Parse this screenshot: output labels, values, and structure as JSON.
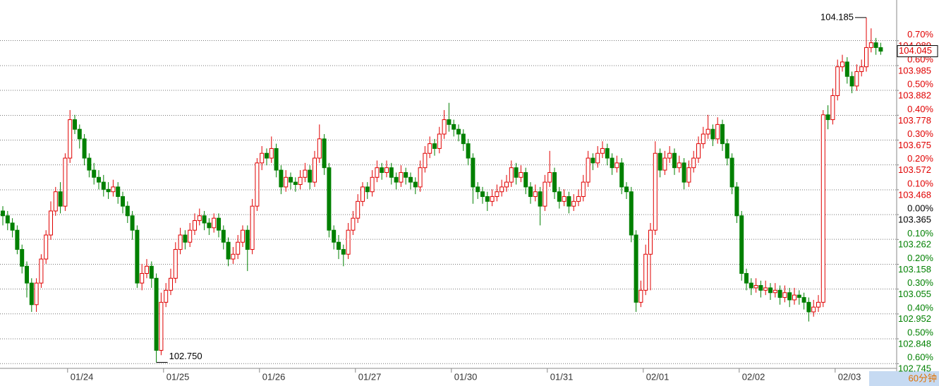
{
  "chart_data": {
    "type": "candlestick",
    "period": "60分钟",
    "up_color": "#e00000",
    "down_color": "#008000",
    "ylim": [
      102.725,
      104.258
    ],
    "yticks": [
      104.089,
      103.985,
      103.882,
      103.778,
      103.675,
      103.572,
      103.468,
      103.365,
      103.262,
      103.158,
      103.055,
      102.952,
      102.848,
      102.745
    ],
    "y2lim": [
      -0.619,
      0.864
    ],
    "y2ticks": [
      {
        "value": 0.7,
        "label": "0.70%"
      },
      {
        "value": 0.6,
        "label": "0.60%"
      },
      {
        "value": 0.5,
        "label": "0.50%"
      },
      {
        "value": 0.4,
        "label": "0.40%"
      },
      {
        "value": 0.3,
        "label": "0.30%"
      },
      {
        "value": 0.2,
        "label": "0.20%"
      },
      {
        "value": 0.1,
        "label": "0.10%"
      },
      {
        "value": 0,
        "label": "0.00%"
      },
      {
        "value": -0.1,
        "label": "0.10%"
      },
      {
        "value": -0.2,
        "label": "0.20%"
      },
      {
        "value": -0.3,
        "label": "0.30%"
      },
      {
        "value": -0.4,
        "label": "0.40%"
      },
      {
        "value": -0.5,
        "label": "0.50%"
      },
      {
        "value": -0.6,
        "label": "0.60%"
      }
    ],
    "annotations": [
      {
        "value": 104.185,
        "label": "104.185"
      },
      {
        "value": 102.75,
        "label": "102.750"
      }
    ],
    "categories": [
      null,
      null,
      null,
      null,
      null,
      null,
      null,
      null,
      null,
      null,
      null,
      null,
      null,
      null,
      "01/24",
      null,
      null,
      null,
      null,
      null,
      null,
      null,
      null,
      null,
      null,
      null,
      null,
      null,
      null,
      null,
      null,
      null,
      null,
      null,
      "01/25",
      null,
      null,
      null,
      null,
      null,
      null,
      null,
      null,
      null,
      null,
      null,
      null,
      null,
      null,
      null,
      null,
      null,
      null,
      null,
      "01/26",
      null,
      null,
      null,
      null,
      null,
      null,
      null,
      null,
      null,
      null,
      null,
      null,
      null,
      null,
      null,
      null,
      null,
      null,
      null,
      "01/27",
      null,
      null,
      null,
      null,
      null,
      null,
      null,
      null,
      null,
      null,
      null,
      null,
      null,
      null,
      null,
      null,
      null,
      null,
      null,
      "01/30",
      null,
      null,
      null,
      null,
      null,
      null,
      null,
      null,
      null,
      null,
      null,
      null,
      null,
      null,
      null,
      null,
      null,
      null,
      null,
      "01/31",
      null,
      null,
      null,
      null,
      null,
      null,
      null,
      null,
      null,
      null,
      null,
      null,
      null,
      null,
      null,
      null,
      null,
      null,
      null,
      "02/01",
      null,
      null,
      null,
      null,
      null,
      null,
      null,
      null,
      null,
      null,
      null,
      null,
      null,
      null,
      null,
      null,
      null,
      null,
      null,
      "02/02",
      null,
      null,
      null,
      null,
      null,
      null,
      null,
      null,
      null,
      null,
      null,
      null,
      null,
      null,
      null,
      null,
      null,
      null,
      null,
      "02/03",
      null,
      null,
      null,
      null,
      null,
      null,
      null,
      null,
      null
    ],
    "ohlc": [
      [
        103.38,
        103.4,
        103.32,
        103.36
      ],
      [
        103.36,
        103.38,
        103.3,
        103.33
      ],
      [
        103.33,
        103.35,
        103.27,
        103.3
      ],
      [
        103.3,
        103.32,
        103.2,
        103.22
      ],
      [
        103.22,
        103.24,
        103.12,
        103.15
      ],
      [
        103.15,
        103.17,
        103.02,
        103.08
      ],
      [
        103.08,
        103.1,
        102.96,
        102.99
      ],
      [
        102.99,
        103.1,
        102.96,
        103.08
      ],
      [
        103.08,
        103.2,
        103.06,
        103.18
      ],
      [
        103.18,
        103.3,
        103.16,
        103.28
      ],
      [
        103.28,
        103.42,
        103.26,
        103.38
      ],
      [
        103.38,
        103.48,
        103.36,
        103.46
      ],
      [
        103.46,
        103.5,
        103.37,
        103.4
      ],
      [
        103.4,
        103.62,
        103.38,
        103.6
      ],
      [
        103.6,
        103.8,
        103.58,
        103.76
      ],
      [
        103.76,
        103.78,
        103.7,
        103.72
      ],
      [
        103.72,
        103.74,
        103.64,
        103.68
      ],
      [
        103.68,
        103.7,
        103.57,
        103.6
      ],
      [
        103.6,
        103.62,
        103.52,
        103.55
      ],
      [
        103.55,
        103.58,
        103.49,
        103.52
      ],
      [
        103.52,
        103.55,
        103.47,
        103.5
      ],
      [
        103.5,
        103.53,
        103.44,
        103.47
      ],
      [
        103.47,
        103.5,
        103.43,
        103.46
      ],
      [
        103.46,
        103.51,
        103.44,
        103.48
      ],
      [
        103.48,
        103.5,
        103.41,
        103.44
      ],
      [
        103.44,
        103.46,
        103.37,
        103.4
      ],
      [
        103.4,
        103.42,
        103.33,
        103.36
      ],
      [
        103.36,
        103.38,
        103.26,
        103.3
      ],
      [
        103.3,
        103.32,
        103.06,
        103.08
      ],
      [
        103.08,
        103.16,
        103.05,
        103.12
      ],
      [
        103.12,
        103.18,
        103.1,
        103.15
      ],
      [
        103.15,
        103.17,
        103.06,
        103.1
      ],
      [
        103.1,
        103.12,
        102.75,
        102.8
      ],
      [
        102.8,
        103.04,
        102.78,
        103.0
      ],
      [
        103.0,
        103.08,
        102.98,
        103.05
      ],
      [
        103.05,
        103.14,
        103.03,
        103.1
      ],
      [
        103.1,
        103.25,
        103.08,
        103.22
      ],
      [
        103.22,
        103.31,
        103.2,
        103.28
      ],
      [
        103.28,
        103.3,
        103.22,
        103.25
      ],
      [
        103.25,
        103.33,
        103.23,
        103.3
      ],
      [
        103.3,
        103.37,
        103.28,
        103.34
      ],
      [
        103.34,
        103.39,
        103.32,
        103.36
      ],
      [
        103.36,
        103.38,
        103.3,
        103.33
      ],
      [
        103.33,
        103.35,
        103.28,
        103.31
      ],
      [
        103.31,
        103.37,
        103.29,
        103.35
      ],
      [
        103.35,
        103.37,
        103.27,
        103.3
      ],
      [
        103.3,
        103.32,
        103.22,
        103.25
      ],
      [
        103.25,
        103.27,
        103.15,
        103.18
      ],
      [
        103.18,
        103.23,
        103.16,
        103.2
      ],
      [
        103.2,
        103.28,
        103.18,
        103.25
      ],
      [
        103.25,
        103.32,
        103.23,
        103.3
      ],
      [
        103.3,
        103.32,
        103.13,
        103.22
      ],
      [
        103.22,
        103.43,
        103.2,
        103.4
      ],
      [
        103.4,
        103.6,
        103.38,
        103.58
      ],
      [
        103.58,
        103.65,
        103.55,
        103.62
      ],
      [
        103.62,
        103.64,
        103.57,
        103.6
      ],
      [
        103.6,
        103.69,
        103.58,
        103.64
      ],
      [
        103.64,
        103.66,
        103.52,
        103.55
      ],
      [
        103.55,
        103.57,
        103.45,
        103.48
      ],
      [
        103.48,
        103.55,
        103.46,
        103.52
      ],
      [
        103.52,
        103.54,
        103.47,
        103.5
      ],
      [
        103.5,
        103.52,
        103.46,
        103.49
      ],
      [
        103.49,
        103.55,
        103.47,
        103.52
      ],
      [
        103.52,
        103.58,
        103.5,
        103.55
      ],
      [
        103.55,
        103.57,
        103.47,
        103.5
      ],
      [
        103.5,
        103.63,
        103.48,
        103.6
      ],
      [
        103.6,
        103.74,
        103.58,
        103.68
      ],
      [
        103.68,
        103.7,
        103.53,
        103.56
      ],
      [
        103.56,
        103.58,
        103.27,
        103.3
      ],
      [
        103.3,
        103.32,
        103.22,
        103.25
      ],
      [
        103.25,
        103.28,
        103.18,
        103.22
      ],
      [
        103.22,
        103.24,
        103.15,
        103.2
      ],
      [
        103.2,
        103.33,
        103.18,
        103.3
      ],
      [
        103.3,
        103.38,
        103.28,
        103.35
      ],
      [
        103.35,
        103.45,
        103.33,
        103.42
      ],
      [
        103.42,
        103.5,
        103.4,
        103.48
      ],
      [
        103.48,
        103.5,
        103.43,
        103.46
      ],
      [
        103.46,
        103.55,
        103.44,
        103.52
      ],
      [
        103.52,
        103.59,
        103.5,
        103.56
      ],
      [
        103.56,
        103.58,
        103.51,
        103.54
      ],
      [
        103.54,
        103.59,
        103.52,
        103.56
      ],
      [
        103.56,
        103.58,
        103.49,
        103.52
      ],
      [
        103.52,
        103.54,
        103.47,
        103.5
      ],
      [
        103.5,
        103.57,
        103.48,
        103.54
      ],
      [
        103.54,
        103.56,
        103.49,
        103.52
      ],
      [
        103.52,
        103.54,
        103.47,
        103.5
      ],
      [
        103.5,
        103.52,
        103.45,
        103.48
      ],
      [
        103.48,
        103.59,
        103.46,
        103.56
      ],
      [
        103.56,
        103.65,
        103.54,
        103.62
      ],
      [
        103.62,
        103.69,
        103.6,
        103.66
      ],
      [
        103.66,
        103.68,
        103.61,
        103.64
      ],
      [
        103.64,
        103.73,
        103.62,
        103.7
      ],
      [
        103.7,
        103.8,
        103.68,
        103.76
      ],
      [
        103.76,
        103.83,
        103.71,
        103.74
      ],
      [
        103.74,
        103.76,
        103.69,
        103.72
      ],
      [
        103.72,
        103.74,
        103.67,
        103.7
      ],
      [
        103.7,
        103.72,
        103.63,
        103.66
      ],
      [
        103.66,
        103.68,
        103.57,
        103.6
      ],
      [
        103.6,
        103.62,
        103.41,
        103.48
      ],
      [
        103.48,
        103.5,
        103.43,
        103.46
      ],
      [
        103.46,
        103.48,
        103.41,
        103.44
      ],
      [
        103.44,
        103.46,
        103.38,
        103.42
      ],
      [
        103.42,
        103.47,
        103.4,
        103.44
      ],
      [
        103.44,
        103.49,
        103.42,
        103.46
      ],
      [
        103.46,
        103.51,
        103.44,
        103.48
      ],
      [
        103.48,
        103.53,
        103.46,
        103.5
      ],
      [
        103.5,
        103.59,
        103.48,
        103.56
      ],
      [
        103.56,
        103.58,
        103.49,
        103.52
      ],
      [
        103.52,
        103.57,
        103.5,
        103.54
      ],
      [
        103.54,
        103.56,
        103.45,
        103.48
      ],
      [
        103.48,
        103.5,
        103.41,
        103.44
      ],
      [
        103.44,
        103.49,
        103.42,
        103.46
      ],
      [
        103.46,
        103.48,
        103.32,
        103.4
      ],
      [
        103.4,
        103.53,
        103.38,
        103.5
      ],
      [
        103.5,
        103.63,
        103.48,
        103.54
      ],
      [
        103.54,
        103.56,
        103.43,
        103.46
      ],
      [
        103.46,
        103.48,
        103.39,
        103.42
      ],
      [
        103.42,
        103.47,
        103.4,
        103.44
      ],
      [
        103.44,
        103.46,
        103.37,
        103.4
      ],
      [
        103.4,
        103.45,
        103.38,
        103.42
      ],
      [
        103.42,
        103.47,
        103.4,
        103.44
      ],
      [
        103.44,
        103.53,
        103.42,
        103.5
      ],
      [
        103.5,
        103.63,
        103.48,
        103.6
      ],
      [
        103.6,
        103.62,
        103.55,
        103.58
      ],
      [
        103.58,
        103.65,
        103.56,
        103.62
      ],
      [
        103.62,
        103.67,
        103.6,
        103.64
      ],
      [
        103.64,
        103.66,
        103.57,
        103.6
      ],
      [
        103.6,
        103.62,
        103.53,
        103.56
      ],
      [
        103.56,
        103.61,
        103.54,
        103.58
      ],
      [
        103.58,
        103.6,
        103.45,
        103.48
      ],
      [
        103.48,
        103.5,
        103.43,
        103.46
      ],
      [
        103.46,
        103.48,
        103.25,
        103.28
      ],
      [
        103.28,
        103.3,
        102.96,
        103.0
      ],
      [
        103.0,
        103.09,
        102.98,
        103.05
      ],
      [
        103.05,
        103.24,
        103.03,
        103.2
      ],
      [
        103.2,
        103.33,
        103.05,
        103.3
      ],
      [
        103.3,
        103.67,
        103.28,
        103.62
      ],
      [
        103.62,
        103.64,
        103.52,
        103.55
      ],
      [
        103.55,
        103.63,
        103.53,
        103.6
      ],
      [
        103.6,
        103.65,
        103.58,
        103.62
      ],
      [
        103.62,
        103.64,
        103.53,
        103.56
      ],
      [
        103.56,
        103.61,
        103.54,
        103.58
      ],
      [
        103.58,
        103.6,
        103.47,
        103.5
      ],
      [
        103.5,
        103.59,
        103.48,
        103.56
      ],
      [
        103.56,
        103.63,
        103.54,
        103.6
      ],
      [
        103.6,
        103.69,
        103.58,
        103.66
      ],
      [
        103.66,
        103.73,
        103.64,
        103.7
      ],
      [
        103.7,
        103.78,
        103.68,
        103.72
      ],
      [
        103.72,
        103.74,
        103.65,
        103.68
      ],
      [
        103.68,
        103.77,
        103.66,
        103.74
      ],
      [
        103.74,
        103.76,
        103.63,
        103.66
      ],
      [
        103.66,
        103.68,
        103.57,
        103.6
      ],
      [
        103.6,
        103.62,
        103.45,
        103.48
      ],
      [
        103.48,
        103.5,
        103.33,
        103.36
      ],
      [
        103.36,
        103.38,
        103.09,
        103.12
      ],
      [
        103.12,
        103.14,
        103.05,
        103.08
      ],
      [
        103.08,
        103.1,
        103.03,
        103.06
      ],
      [
        103.06,
        103.1,
        103.04,
        103.07
      ],
      [
        103.07,
        103.09,
        103.02,
        103.05
      ],
      [
        103.05,
        103.09,
        103.03,
        103.06
      ],
      [
        103.06,
        103.08,
        103.01,
        103.04
      ],
      [
        103.04,
        103.08,
        103.02,
        103.05
      ],
      [
        103.05,
        103.07,
        102.99,
        103.02
      ],
      [
        103.02,
        103.07,
        103.0,
        103.04
      ],
      [
        103.04,
        103.06,
        102.98,
        103.01
      ],
      [
        103.01,
        103.06,
        102.99,
        103.03
      ],
      [
        103.03,
        103.05,
        102.99,
        103.02
      ],
      [
        103.02,
        103.04,
        102.97,
        103.0
      ],
      [
        103.0,
        103.02,
        102.92,
        102.96
      ],
      [
        102.96,
        103.01,
        102.94,
        102.98
      ],
      [
        102.98,
        103.03,
        102.96,
        103.0
      ],
      [
        103.0,
        103.8,
        102.98,
        103.78
      ],
      [
        103.78,
        103.82,
        103.72,
        103.76
      ],
      [
        103.76,
        103.89,
        103.74,
        103.86
      ],
      [
        103.86,
        104.01,
        103.84,
        103.98
      ],
      [
        103.98,
        104.03,
        103.96,
        104.0
      ],
      [
        104.0,
        104.02,
        103.91,
        103.94
      ],
      [
        103.94,
        103.96,
        103.87,
        103.9
      ],
      [
        103.9,
        103.99,
        103.88,
        103.96
      ],
      [
        103.96,
        104.01,
        103.94,
        103.98
      ],
      [
        103.98,
        104.185,
        103.96,
        104.06
      ],
      [
        104.06,
        104.14,
        104.04,
        104.08
      ],
      [
        104.08,
        104.1,
        104.03,
        104.06
      ],
      [
        104.06,
        104.08,
        104.03,
        104.045
      ]
    ]
  }
}
